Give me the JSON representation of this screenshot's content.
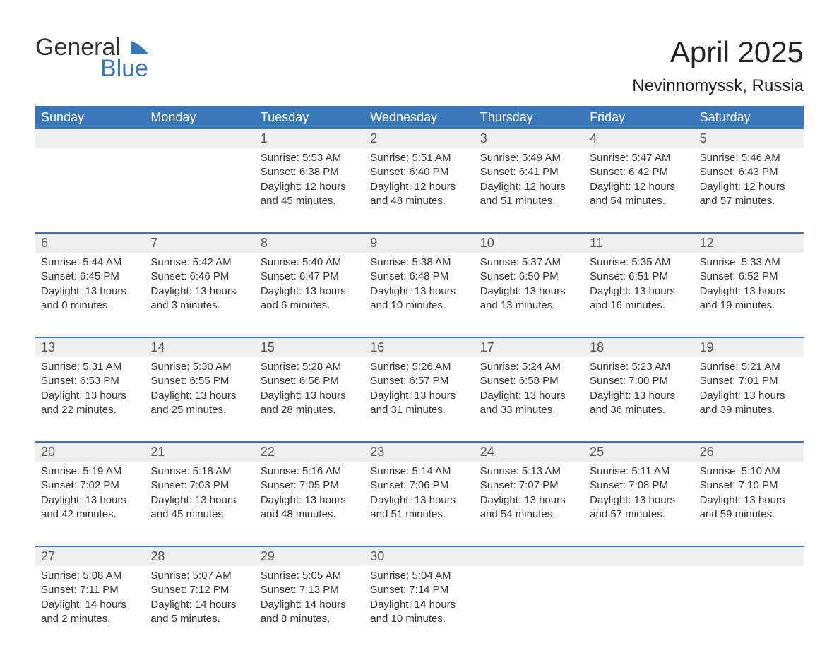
{
  "brand": {
    "word1": "General",
    "word2": "Blue",
    "sail_color": "#3a76b8",
    "text_color": "#333333"
  },
  "title": "April 2025",
  "location": "Nevinnomyssk, Russia",
  "header_bg": "#3a76b8",
  "header_fg": "#ffffff",
  "daynum_bg": "#eeeeee",
  "week_border": "#3a76b8",
  "page_bg": "#ffffff",
  "body_color": "#333333",
  "dow": [
    "Sunday",
    "Monday",
    "Tuesday",
    "Wednesday",
    "Thursday",
    "Friday",
    "Saturday"
  ],
  "weeks": [
    {
      "nums": [
        "",
        "",
        "1",
        "2",
        "3",
        "4",
        "5"
      ],
      "days": [
        null,
        null,
        {
          "sunrise": "5:53 AM",
          "sunset": "6:38 PM",
          "daylight": "12 hours and 45 minutes."
        },
        {
          "sunrise": "5:51 AM",
          "sunset": "6:40 PM",
          "daylight": "12 hours and 48 minutes."
        },
        {
          "sunrise": "5:49 AM",
          "sunset": "6:41 PM",
          "daylight": "12 hours and 51 minutes."
        },
        {
          "sunrise": "5:47 AM",
          "sunset": "6:42 PM",
          "daylight": "12 hours and 54 minutes."
        },
        {
          "sunrise": "5:46 AM",
          "sunset": "6:43 PM",
          "daylight": "12 hours and 57 minutes."
        }
      ]
    },
    {
      "nums": [
        "6",
        "7",
        "8",
        "9",
        "10",
        "11",
        "12"
      ],
      "days": [
        {
          "sunrise": "5:44 AM",
          "sunset": "6:45 PM",
          "daylight": "13 hours and 0 minutes."
        },
        {
          "sunrise": "5:42 AM",
          "sunset": "6:46 PM",
          "daylight": "13 hours and 3 minutes."
        },
        {
          "sunrise": "5:40 AM",
          "sunset": "6:47 PM",
          "daylight": "13 hours and 6 minutes."
        },
        {
          "sunrise": "5:38 AM",
          "sunset": "6:48 PM",
          "daylight": "13 hours and 10 minutes."
        },
        {
          "sunrise": "5:37 AM",
          "sunset": "6:50 PM",
          "daylight": "13 hours and 13 minutes."
        },
        {
          "sunrise": "5:35 AM",
          "sunset": "6:51 PM",
          "daylight": "13 hours and 16 minutes."
        },
        {
          "sunrise": "5:33 AM",
          "sunset": "6:52 PM",
          "daylight": "13 hours and 19 minutes."
        }
      ]
    },
    {
      "nums": [
        "13",
        "14",
        "15",
        "16",
        "17",
        "18",
        "19"
      ],
      "days": [
        {
          "sunrise": "5:31 AM",
          "sunset": "6:53 PM",
          "daylight": "13 hours and 22 minutes."
        },
        {
          "sunrise": "5:30 AM",
          "sunset": "6:55 PM",
          "daylight": "13 hours and 25 minutes."
        },
        {
          "sunrise": "5:28 AM",
          "sunset": "6:56 PM",
          "daylight": "13 hours and 28 minutes."
        },
        {
          "sunrise": "5:26 AM",
          "sunset": "6:57 PM",
          "daylight": "13 hours and 31 minutes."
        },
        {
          "sunrise": "5:24 AM",
          "sunset": "6:58 PM",
          "daylight": "13 hours and 33 minutes."
        },
        {
          "sunrise": "5:23 AM",
          "sunset": "7:00 PM",
          "daylight": "13 hours and 36 minutes."
        },
        {
          "sunrise": "5:21 AM",
          "sunset": "7:01 PM",
          "daylight": "13 hours and 39 minutes."
        }
      ]
    },
    {
      "nums": [
        "20",
        "21",
        "22",
        "23",
        "24",
        "25",
        "26"
      ],
      "days": [
        {
          "sunrise": "5:19 AM",
          "sunset": "7:02 PM",
          "daylight": "13 hours and 42 minutes."
        },
        {
          "sunrise": "5:18 AM",
          "sunset": "7:03 PM",
          "daylight": "13 hours and 45 minutes."
        },
        {
          "sunrise": "5:16 AM",
          "sunset": "7:05 PM",
          "daylight": "13 hours and 48 minutes."
        },
        {
          "sunrise": "5:14 AM",
          "sunset": "7:06 PM",
          "daylight": "13 hours and 51 minutes."
        },
        {
          "sunrise": "5:13 AM",
          "sunset": "7:07 PM",
          "daylight": "13 hours and 54 minutes."
        },
        {
          "sunrise": "5:11 AM",
          "sunset": "7:08 PM",
          "daylight": "13 hours and 57 minutes."
        },
        {
          "sunrise": "5:10 AM",
          "sunset": "7:10 PM",
          "daylight": "13 hours and 59 minutes."
        }
      ]
    },
    {
      "nums": [
        "27",
        "28",
        "29",
        "30",
        "",
        "",
        ""
      ],
      "days": [
        {
          "sunrise": "5:08 AM",
          "sunset": "7:11 PM",
          "daylight": "14 hours and 2 minutes."
        },
        {
          "sunrise": "5:07 AM",
          "sunset": "7:12 PM",
          "daylight": "14 hours and 5 minutes."
        },
        {
          "sunrise": "5:05 AM",
          "sunset": "7:13 PM",
          "daylight": "14 hours and 8 minutes."
        },
        {
          "sunrise": "5:04 AM",
          "sunset": "7:14 PM",
          "daylight": "14 hours and 10 minutes."
        },
        null,
        null,
        null
      ]
    }
  ],
  "labels": {
    "sunrise": "Sunrise:",
    "sunset": "Sunset:",
    "daylight": "Daylight:"
  }
}
